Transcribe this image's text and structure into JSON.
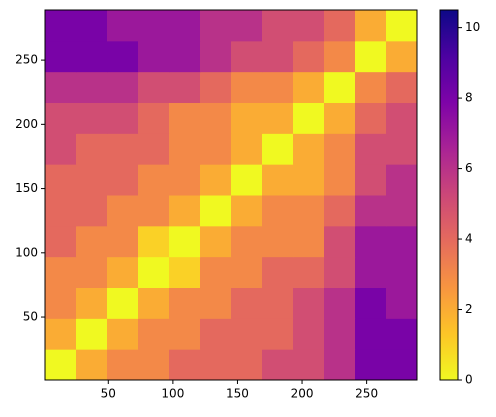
{
  "chart_data": {
    "type": "heatmap",
    "xbins": [
      1,
      25,
      49,
      73,
      97,
      121,
      145,
      169,
      193,
      217,
      241,
      265,
      289
    ],
    "ybins": [
      1,
      25,
      49,
      73,
      97,
      121,
      145,
      169,
      193,
      217,
      241,
      265,
      289
    ],
    "values": [
      [
        0,
        2,
        3,
        3,
        4,
        4,
        4,
        5,
        5,
        6,
        8,
        8
      ],
      [
        2,
        0,
        2,
        3,
        3,
        4,
        4,
        4,
        5,
        6,
        8,
        8
      ],
      [
        3,
        2,
        0,
        2,
        3,
        3,
        4,
        4,
        5,
        6,
        8,
        7
      ],
      [
        3,
        3,
        2,
        0,
        1,
        3,
        3,
        4,
        4,
        5,
        7,
        7
      ],
      [
        4,
        3,
        3,
        1,
        0,
        2,
        3,
        3,
        3,
        5,
        7,
        7
      ],
      [
        4,
        4,
        3,
        3,
        2,
        0,
        2,
        3,
        3,
        4,
        6,
        6
      ],
      [
        4,
        4,
        4,
        3,
        3,
        2,
        0,
        2,
        2,
        3,
        5,
        6
      ],
      [
        5,
        4,
        4,
        4,
        3,
        3,
        2,
        0,
        2,
        3,
        5,
        5
      ],
      [
        5,
        5,
        5,
        4,
        3,
        3,
        2,
        2,
        0,
        2,
        4,
        5
      ],
      [
        6,
        6,
        6,
        5,
        5,
        4,
        3,
        3,
        2,
        0,
        3,
        4
      ],
      [
        8,
        8,
        8,
        7,
        7,
        6,
        5,
        5,
        4,
        3,
        0,
        2
      ],
      [
        8,
        8,
        7,
        7,
        7,
        6,
        6,
        5,
        5,
        4,
        2,
        0
      ]
    ],
    "xlim": [
      1,
      289
    ],
    "ylim": [
      1,
      289
    ],
    "xticks": [
      50,
      100,
      150,
      200,
      250
    ],
    "yticks": [
      50,
      100,
      150,
      200,
      250
    ],
    "colormap": "plasma_r",
    "clim": [
      0,
      10.5
    ],
    "cticks": [
      0,
      2,
      4,
      6,
      8,
      10
    ]
  }
}
